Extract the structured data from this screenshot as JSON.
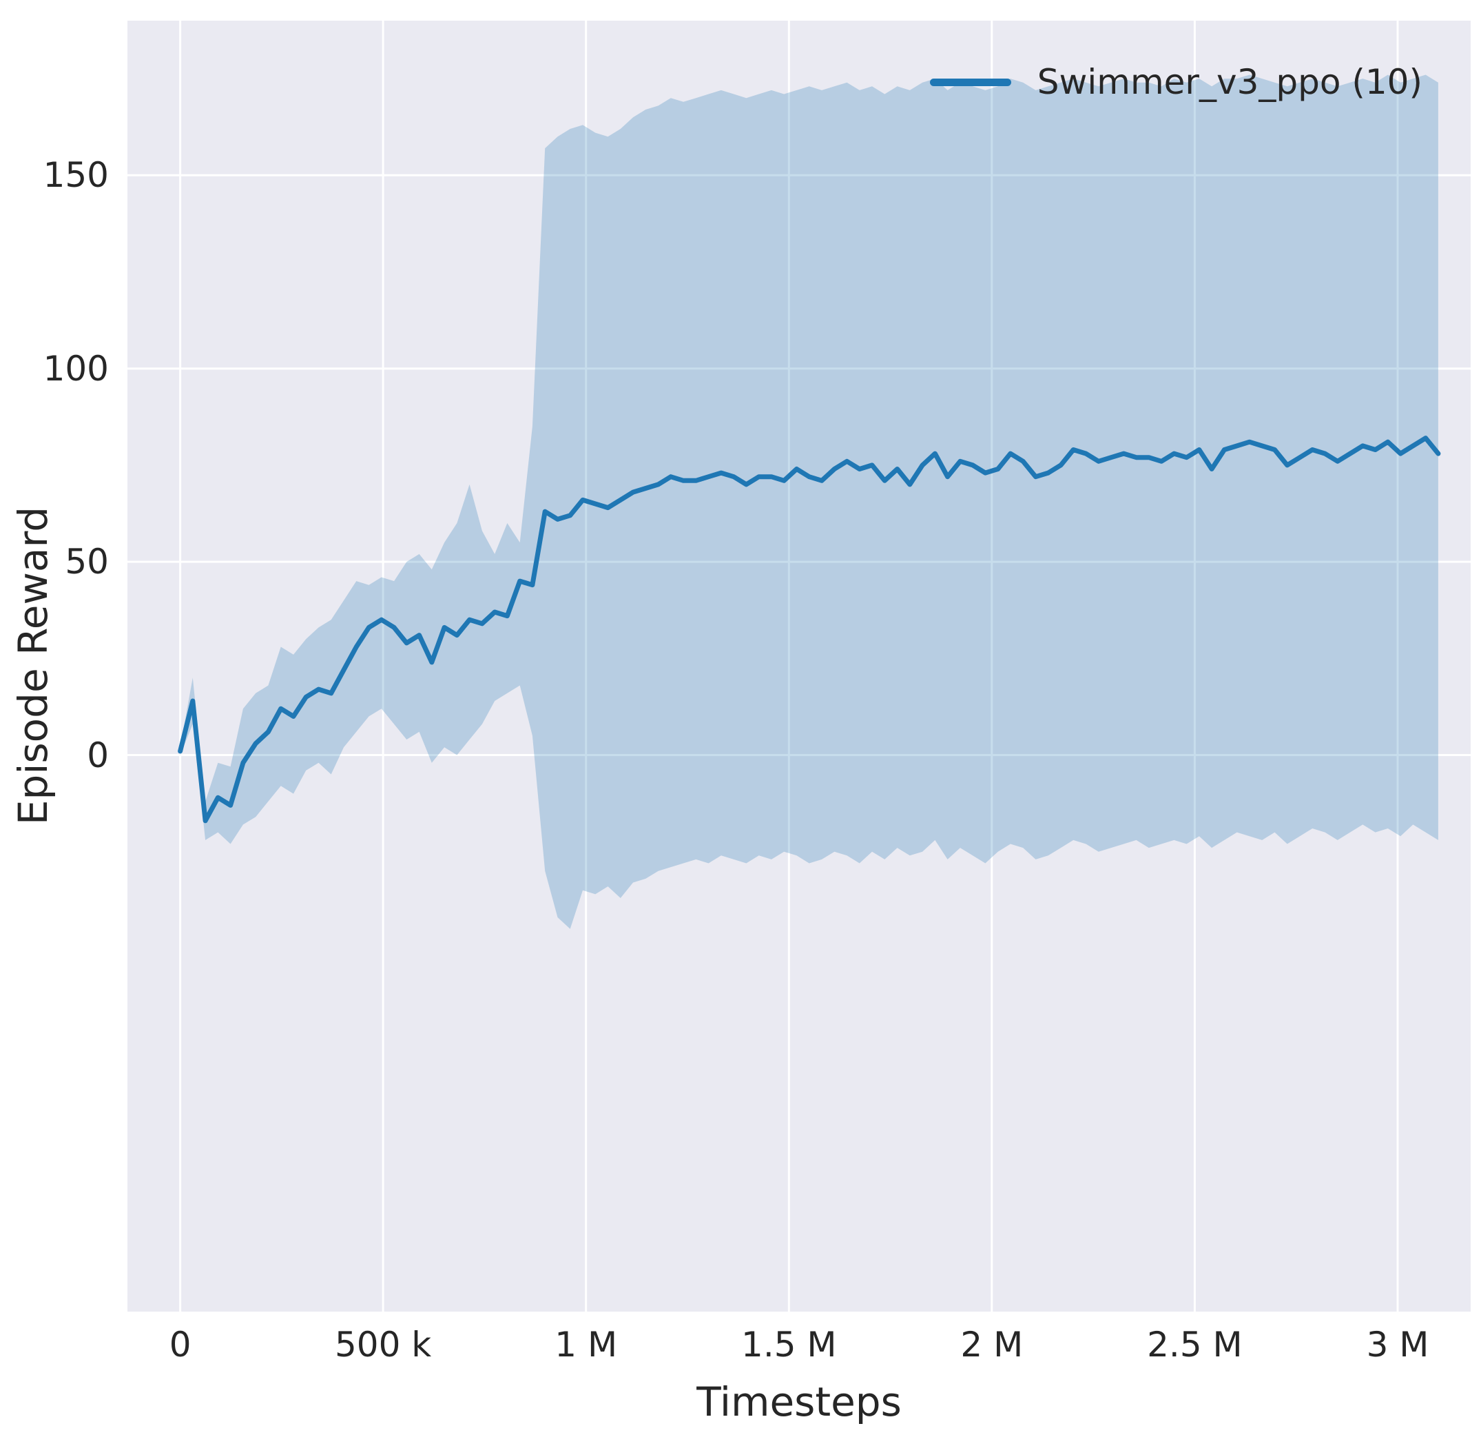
{
  "chart_data": {
    "type": "line",
    "xlabel": "Timesteps",
    "ylabel": "Episode Reward",
    "grid": true,
    "legend_position": "upper right",
    "plot_background": "#eaeaf2",
    "grid_color": "#ffffff",
    "text_color": "#262626",
    "line_color": "#1f77b4",
    "band_opacity": 0.25,
    "xlim": [
      -130000,
      3180000
    ],
    "ylim": [
      -144,
      190
    ],
    "xticks": [
      {
        "value": 0,
        "label": "0"
      },
      {
        "value": 500000,
        "label": "500 k"
      },
      {
        "value": 1000000,
        "label": "1 M"
      },
      {
        "value": 1500000,
        "label": "1.5 M"
      },
      {
        "value": 2000000,
        "label": "2 M"
      },
      {
        "value": 2500000,
        "label": "2.5 M"
      },
      {
        "value": 3000000,
        "label": "3 M"
      }
    ],
    "yticks": [
      {
        "value": 0,
        "label": "0"
      },
      {
        "value": 50,
        "label": "50"
      },
      {
        "value": 100,
        "label": "100"
      },
      {
        "value": 150,
        "label": "150"
      }
    ],
    "series": [
      {
        "name": "Swimmer_v3_ppo (10)",
        "x": [
          0,
          31000,
          62000,
          93000,
          124000,
          155000,
          186000,
          217000,
          248000,
          279000,
          310000,
          341000,
          372000,
          403000,
          434000,
          465000,
          496000,
          527000,
          558000,
          589000,
          620000,
          651000,
          682000,
          713000,
          744000,
          775000,
          806000,
          837000,
          868000,
          899000,
          930000,
          961000,
          992000,
          1023000,
          1054000,
          1085000,
          1116000,
          1147000,
          1178000,
          1209000,
          1240000,
          1271000,
          1302000,
          1333000,
          1364000,
          1395000,
          1426000,
          1457000,
          1488000,
          1519000,
          1550000,
          1581000,
          1612000,
          1643000,
          1674000,
          1705000,
          1736000,
          1767000,
          1798000,
          1829000,
          1860000,
          1891000,
          1922000,
          1953000,
          1984000,
          2015000,
          2046000,
          2077000,
          2108000,
          2139000,
          2170000,
          2201000,
          2232000,
          2263000,
          2294000,
          2325000,
          2356000,
          2387000,
          2418000,
          2449000,
          2480000,
          2511000,
          2542000,
          2573000,
          2604000,
          2635000,
          2666000,
          2697000,
          2728000,
          2759000,
          2790000,
          2821000,
          2852000,
          2883000,
          2914000,
          2945000,
          2976000,
          3007000,
          3038000,
          3069000,
          3100000
        ],
        "mean": [
          1,
          14,
          -17,
          -11,
          -13,
          -2,
          3,
          6,
          12,
          10,
          15,
          17,
          16,
          22,
          28,
          33,
          35,
          33,
          29,
          31,
          24,
          33,
          31,
          35,
          34,
          37,
          36,
          45,
          44,
          63,
          61,
          62,
          66,
          65,
          64,
          66,
          68,
          69,
          70,
          72,
          71,
          71,
          72,
          73,
          72,
          70,
          72,
          72,
          71,
          74,
          72,
          71,
          74,
          76,
          74,
          75,
          71,
          74,
          70,
          75,
          78,
          72,
          76,
          75,
          73,
          74,
          78,
          76,
          72,
          73,
          75,
          79,
          78,
          76,
          77,
          78,
          77,
          77,
          76,
          78,
          77,
          79,
          74,
          79,
          80,
          81,
          80,
          79,
          75,
          77,
          79,
          78,
          76,
          78,
          80,
          79,
          81,
          78,
          80,
          82,
          78
        ],
        "lower": [
          0,
          8,
          -22,
          -20,
          -23,
          -18,
          -16,
          -12,
          -8,
          -10,
          -4,
          -2,
          -5,
          2,
          6,
          10,
          12,
          8,
          4,
          6,
          -2,
          2,
          0,
          4,
          8,
          14,
          16,
          18,
          5,
          -30,
          -42,
          -45,
          -35,
          -36,
          -34,
          -37,
          -33,
          -32,
          -30,
          -29,
          -28,
          -27,
          -28,
          -26,
          -27,
          -28,
          -26,
          -27,
          -25,
          -26,
          -28,
          -27,
          -25,
          -26,
          -28,
          -25,
          -27,
          -24,
          -26,
          -25,
          -22,
          -27,
          -24,
          -26,
          -28,
          -25,
          -23,
          -24,
          -27,
          -26,
          -24,
          -22,
          -23,
          -25,
          -24,
          -23,
          -22,
          -24,
          -23,
          -22,
          -23,
          -21,
          -24,
          -22,
          -20,
          -21,
          -22,
          -20,
          -23,
          -21,
          -19,
          -20,
          -22,
          -20,
          -18,
          -20,
          -19,
          -21,
          -18,
          -20,
          -22
        ],
        "upper": [
          2,
          20,
          -12,
          -2,
          -3,
          12,
          16,
          18,
          28,
          26,
          30,
          33,
          35,
          40,
          45,
          44,
          46,
          45,
          50,
          52,
          48,
          55,
          60,
          70,
          58,
          52,
          60,
          55,
          85,
          157,
          160,
          162,
          163,
          161,
          160,
          162,
          165,
          167,
          168,
          170,
          169,
          170,
          171,
          172,
          171,
          170,
          171,
          172,
          171,
          172,
          173,
          172,
          173,
          174,
          172,
          173,
          171,
          173,
          172,
          174,
          175,
          172,
          174,
          173,
          172,
          173,
          175,
          174,
          172,
          173,
          174,
          175,
          174,
          173,
          174,
          175,
          174,
          174,
          173,
          175,
          174,
          175,
          173,
          175,
          175,
          176,
          175,
          174,
          173,
          174,
          175,
          174,
          173,
          174,
          175,
          174,
          176,
          174,
          175,
          176,
          174
        ]
      }
    ]
  }
}
